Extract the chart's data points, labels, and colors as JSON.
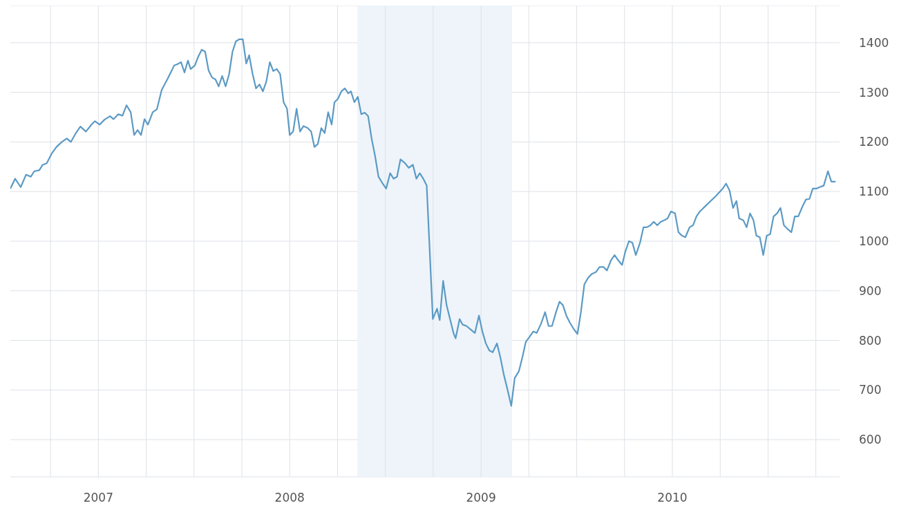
{
  "chart_data": {
    "type": "line",
    "xlim": [
      2006.54,
      2010.874
    ],
    "ylim": [
      525,
      1475
    ],
    "xticks": [
      {
        "value": 2006.75,
        "label": null
      },
      {
        "value": 2007,
        "label": "2007"
      },
      {
        "value": 2007.25,
        "label": null
      },
      {
        "value": 2007.5,
        "label": null
      },
      {
        "value": 2007.75,
        "label": null
      },
      {
        "value": 2008,
        "label": "2008"
      },
      {
        "value": 2008.25,
        "label": null
      },
      {
        "value": 2008.5,
        "label": null
      },
      {
        "value": 2008.75,
        "label": null
      },
      {
        "value": 2009,
        "label": "2009"
      },
      {
        "value": 2009.25,
        "label": null
      },
      {
        "value": 2009.5,
        "label": null
      },
      {
        "value": 2009.75,
        "label": null
      },
      {
        "value": 2010,
        "label": "2010"
      },
      {
        "value": 2010.25,
        "label": null
      },
      {
        "value": 2010.5,
        "label": null
      },
      {
        "value": 2010.75,
        "label": null
      }
    ],
    "yticks": [
      600,
      700,
      800,
      900,
      1000,
      1100,
      1200,
      1300,
      1400
    ],
    "grid": true,
    "marker": "none",
    "bands": [
      {
        "axis": "x",
        "from": 2008.353,
        "to": 2009.162,
        "color": "#eef4fa"
      }
    ],
    "x": [
      2006.54,
      2006.565,
      2006.594,
      2006.622,
      2006.647,
      2006.665,
      2006.691,
      2006.709,
      2006.73,
      2006.755,
      2006.781,
      2006.809,
      2006.835,
      2006.856,
      2006.881,
      2006.906,
      2006.935,
      2006.964,
      2006.982,
      2007.007,
      2007.032,
      2007.061,
      2007.079,
      2007.104,
      2007.126,
      2007.147,
      2007.169,
      2007.187,
      2007.205,
      2007.223,
      2007.241,
      2007.259,
      2007.284,
      2007.306,
      2007.331,
      2007.36,
      2007.378,
      2007.396,
      2007.414,
      2007.432,
      2007.45,
      2007.468,
      2007.482,
      2007.504,
      2007.522,
      2007.54,
      2007.558,
      2007.576,
      2007.594,
      2007.612,
      2007.629,
      2007.647,
      2007.665,
      2007.683,
      2007.701,
      2007.719,
      2007.737,
      2007.755,
      2007.773,
      2007.788,
      2007.806,
      2007.824,
      2007.842,
      2007.86,
      2007.878,
      2007.896,
      2007.914,
      2007.932,
      2007.95,
      2007.968,
      2007.986,
      2008.0,
      2008.018,
      2008.036,
      2008.054,
      2008.072,
      2008.094,
      2008.112,
      2008.129,
      2008.147,
      2008.165,
      2008.183,
      2008.201,
      2008.219,
      2008.234,
      2008.252,
      2008.27,
      2008.288,
      2008.306,
      2008.32,
      2008.338,
      2008.356,
      2008.374,
      2008.392,
      2008.41,
      2008.428,
      2008.446,
      2008.464,
      2008.486,
      2008.504,
      2008.525,
      2008.543,
      2008.561,
      2008.579,
      2008.601,
      2008.622,
      2008.644,
      2008.662,
      2008.68,
      2008.698,
      2008.716,
      2008.734,
      2008.748,
      2008.77,
      2008.784,
      2008.802,
      2008.82,
      2008.838,
      2008.856,
      2008.867,
      2008.888,
      2008.903,
      2008.924,
      2008.946,
      2008.968,
      2008.989,
      2009.007,
      2009.025,
      2009.043,
      2009.061,
      2009.083,
      2009.101,
      2009.119,
      2009.137,
      2009.158,
      2009.176,
      2009.198,
      2009.216,
      2009.234,
      2009.255,
      2009.273,
      2009.291,
      2009.313,
      2009.335,
      2009.353,
      2009.371,
      2009.392,
      2009.41,
      2009.428,
      2009.446,
      2009.464,
      2009.486,
      2009.504,
      2009.522,
      2009.54,
      2009.561,
      2009.579,
      2009.601,
      2009.619,
      2009.64,
      2009.658,
      2009.68,
      2009.698,
      2009.716,
      2009.737,
      2009.755,
      2009.773,
      2009.791,
      2009.809,
      2009.831,
      2009.849,
      2009.867,
      2009.885,
      2009.903,
      2009.921,
      2009.939,
      2009.957,
      2009.975,
      2009.993,
      2010.014,
      2010.032,
      2010.05,
      2010.068,
      2010.09,
      2010.108,
      2010.126,
      2010.144,
      2010.227,
      2010.263,
      2010.281,
      2010.299,
      2010.317,
      2010.335,
      2010.349,
      2010.371,
      2010.388,
      2010.406,
      2010.424,
      2010.439,
      2010.457,
      2010.475,
      2010.493,
      2010.511,
      2010.529,
      2010.547,
      2010.565,
      2010.583,
      2010.601,
      2010.622,
      2010.64,
      2010.658,
      2010.68,
      2010.698,
      2010.716,
      2010.734,
      2010.752,
      2010.77,
      2010.791,
      2010.813,
      2010.831,
      2010.853
    ],
    "series": [
      {
        "color": "#5b9ac4",
        "values": [
          1106,
          1126,
          1109,
          1134,
          1130,
          1141,
          1143,
          1154,
          1157,
          1176,
          1190,
          1200,
          1207,
          1200,
          1217,
          1231,
          1221,
          1235,
          1242,
          1235,
          1245,
          1252,
          1246,
          1256,
          1253,
          1274,
          1260,
          1214,
          1224,
          1214,
          1246,
          1235,
          1260,
          1266,
          1305,
          1326,
          1340,
          1354,
          1357,
          1361,
          1340,
          1364,
          1347,
          1354,
          1372,
          1386,
          1382,
          1344,
          1330,
          1326,
          1312,
          1333,
          1312,
          1336,
          1382,
          1403,
          1407,
          1407,
          1358,
          1375,
          1337,
          1308,
          1316,
          1302,
          1322,
          1361,
          1343,
          1347,
          1337,
          1280,
          1267,
          1214,
          1221,
          1267,
          1221,
          1232,
          1228,
          1221,
          1190,
          1196,
          1228,
          1218,
          1260,
          1235,
          1280,
          1287,
          1302,
          1308,
          1298,
          1302,
          1280,
          1291,
          1256,
          1259,
          1252,
          1207,
          1172,
          1130,
          1116,
          1106,
          1137,
          1126,
          1130,
          1165,
          1158,
          1148,
          1154,
          1126,
          1137,
          1126,
          1112,
          962,
          843,
          864,
          841,
          920,
          871,
          843,
          815,
          804,
          843,
          832,
          829,
          822,
          815,
          850,
          818,
          794,
          780,
          776,
          794,
          766,
          731,
          703,
          668,
          724,
          738,
          766,
          797,
          808,
          818,
          815,
          833,
          857,
          829,
          829,
          857,
          878,
          871,
          850,
          836,
          822,
          813,
          857,
          913,
          927,
          934,
          938,
          948,
          948,
          941,
          962,
          972,
          962,
          952,
          980,
          1000,
          997,
          972,
          997,
          1028,
          1028,
          1032,
          1039,
          1032,
          1039,
          1042,
          1046,
          1060,
          1056,
          1018,
          1011,
          1008,
          1028,
          1032,
          1050,
          1060,
          1091,
          1106,
          1116,
          1102,
          1067,
          1081,
          1046,
          1042,
          1028,
          1056,
          1042,
          1011,
          1008,
          972,
          1011,
          1014,
          1050,
          1056,
          1067,
          1032,
          1025,
          1018,
          1050,
          1050,
          1070,
          1084,
          1085,
          1106,
          1106,
          1109,
          1112,
          1141,
          1120,
          1120
        ]
      }
    ]
  }
}
